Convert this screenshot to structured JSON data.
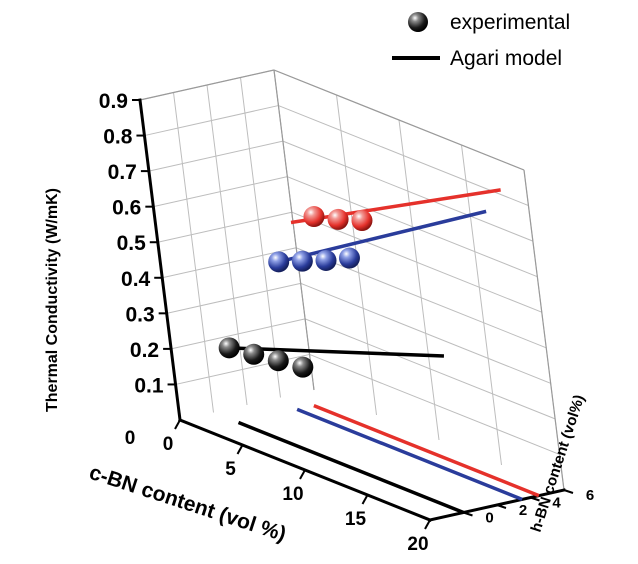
{
  "chart_data": {
    "type": "scatter",
    "projection": "3d",
    "xlabel": "c-BN content (vol %)",
    "ylabel": "h-BN content (vol%)",
    "zlabel": "Thermal Conductivity (W/mK)",
    "xlim": [
      0,
      20
    ],
    "ylim": [
      -2,
      6
    ],
    "zlim": [
      0,
      0.9
    ],
    "x_ticks": [
      "0",
      "5",
      "10",
      "15",
      "20"
    ],
    "y_ticks": [
      "0",
      "2",
      "4",
      "6"
    ],
    "z_ticks": [
      "0.1",
      "0.2",
      "0.3",
      "0.4",
      "0.5",
      "0.6",
      "0.7",
      "0.8",
      "0.9"
    ],
    "legend": {
      "placement": "top-right",
      "entries": [
        {
          "label": "experimental",
          "marker": "sphere"
        },
        {
          "label": "Agari model",
          "marker": "line"
        }
      ]
    },
    "grid": true,
    "series": [
      {
        "color": "#000000",
        "y": 0,
        "experimental": {
          "x": [
            2,
            4,
            6,
            8
          ],
          "z": [
            0.21,
            0.22,
            0.23,
            0.24
          ]
        },
        "model": {
          "x": [
            2,
            20
          ],
          "z": [
            0.21,
            0.44
          ]
        },
        "projection_floor": {
          "x": [
            2,
            20
          ]
        }
      },
      {
        "color": "#2a3c9b",
        "y": 3.5,
        "experimental": {
          "x": [
            2,
            4,
            6,
            8
          ],
          "z": [
            0.415,
            0.445,
            0.475,
            0.51
          ]
        },
        "model": {
          "x": [
            2,
            20
          ],
          "z": [
            0.415,
            0.81
          ]
        },
        "projection_floor": {
          "x": [
            2,
            20
          ]
        }
      },
      {
        "color": "#e5312b",
        "y": 4.5,
        "experimental": {
          "x": [
            4,
            6,
            8
          ],
          "z": [
            0.56,
            0.58,
            0.605
          ]
        },
        "model": {
          "x": [
            2,
            20
          ],
          "z": [
            0.515,
            0.86
          ]
        },
        "projection_floor": {
          "x": [
            2,
            20
          ]
        }
      }
    ]
  }
}
